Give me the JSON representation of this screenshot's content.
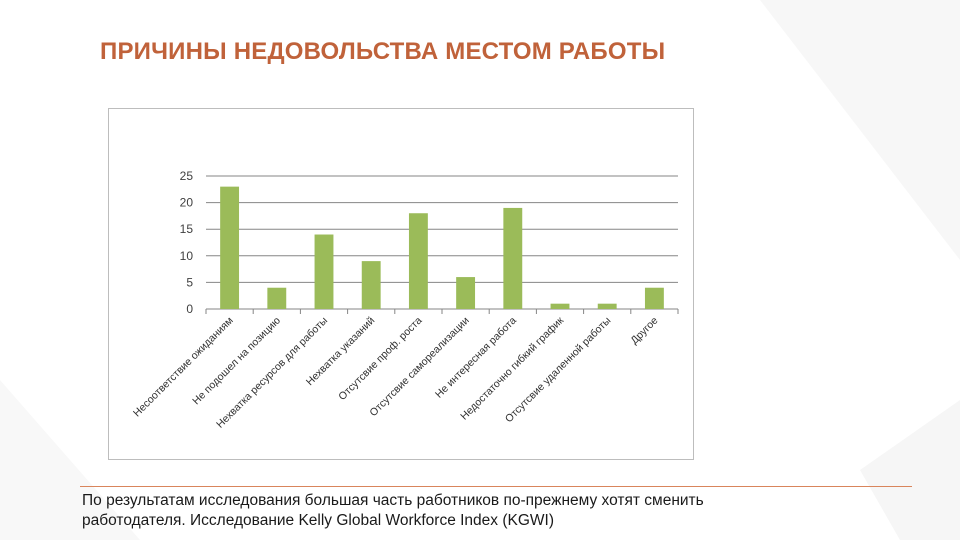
{
  "slide": {
    "title": "ПРИЧИНЫ НЕДОВОЛЬСТВА МЕСТОМ РАБОТЫ",
    "footer_line1": "По результатам исследования большая часть работников по-прежнему хотят сменить",
    "footer_line2": "работодателя. Исследование Kelly Global Workforce Index (KGWI)"
  },
  "colors": {
    "title": "#c0623a",
    "bar": "#9bbb59",
    "grid": "#868686",
    "divider": "#d9855c"
  },
  "chart_data": {
    "type": "bar",
    "title": "",
    "xlabel": "",
    "ylabel": "",
    "ylim": [
      0,
      25
    ],
    "yticks": [
      0,
      5,
      10,
      15,
      20,
      25
    ],
    "grid": true,
    "legend": "none",
    "categories": [
      "Несоответствие ожиданиям",
      "Не подошел на позицию",
      "Нехватка ресурсов для работы",
      "Нехватка указаний",
      "Отсутсвие проф. роста",
      "Отсутсвие самореализации",
      "Не интересная работа",
      "Недостаточно гибкий график",
      "Отсутсвие удаленной работы",
      "Другое"
    ],
    "values": [
      23,
      4,
      14,
      9,
      18,
      6,
      19,
      1,
      1,
      4
    ]
  }
}
